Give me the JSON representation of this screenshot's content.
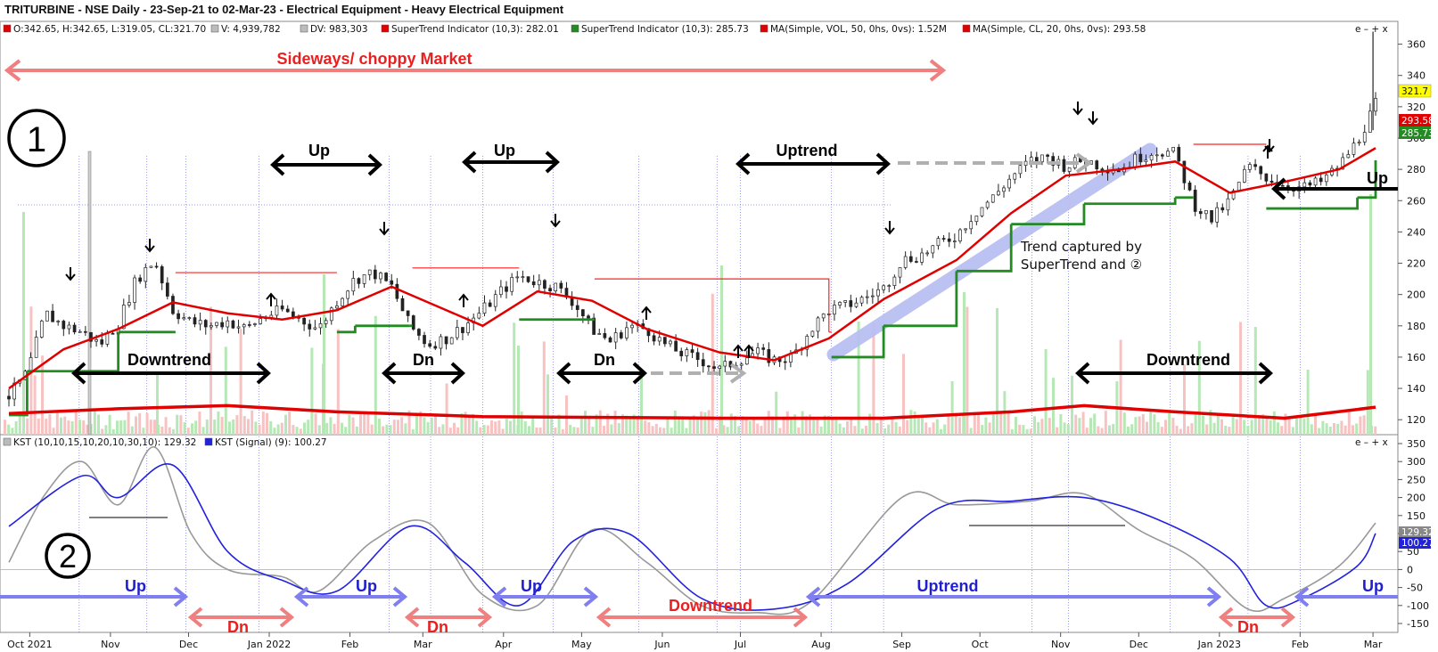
{
  "header": {
    "title": "TRITURBINE - NSE Daily - 23-Sep-21 to 02-Mar-23 - Electrical Equipment - Heavy Electrical Equipment",
    "window_controls": "e – + x",
    "subpanel_controls": "e – + x"
  },
  "colors": {
    "price_up": "#1a1a1a",
    "supertrend_green": "#228B22",
    "supertrend_red": "#ff2020",
    "ma20": "#e00000",
    "volume_ma": "#e00000",
    "volume_up": "#b6e8b6",
    "volume_down": "#f7c2c2",
    "kst": "#999999",
    "kst_signal": "#2222dd",
    "grid_vertical": "#5a5ae6",
    "sideways_arrow": "#f07f7f",
    "up_arrow_blue": "#7f7ff0",
    "down_arrow_red": "#f07f7f",
    "dashed_arrow": "#b0b0b0",
    "trend_band": "#b9bff2",
    "last_price_tag": "#ffff00",
    "ma_tag": "#e00000",
    "st_tag": "#228B22",
    "kst_tag": "#888888",
    "signal_tag": "#2222dd"
  },
  "legend_top": [
    {
      "icon": "none",
      "text": "O:342.65, H:342.65, L:319.05, CL:321.70"
    },
    {
      "icon": "square-gray",
      "text": "V: 4,939,782"
    },
    {
      "icon": "square-gray",
      "text": "DV: 983,303"
    },
    {
      "icon": "square-red",
      "text": "SuperTrend Indicator (10,3): 282.01"
    },
    {
      "icon": "square-green",
      "text": "SuperTrend Indicator (10,3): 285.73"
    },
    {
      "icon": "square-red",
      "text": "MA(Simple, VOL, 50, 0hs, 0vs): 1.52M"
    },
    {
      "icon": "square-red",
      "text": "MA(Simple, CL, 20, 0hs, 0vs): 293.58"
    }
  ],
  "legend_bottom": [
    {
      "icon": "square-gray",
      "text": "KST (10,10,15,10,20,10,30,10): 129.32"
    },
    {
      "icon": "square-blue",
      "text": "KST (Signal) (9): 100.27"
    }
  ],
  "price_axis_ticks": [
    "360",
    "340",
    "320",
    "300",
    "280",
    "260",
    "240",
    "220",
    "200",
    "180",
    "160",
    "140",
    "120"
  ],
  "kst_axis_ticks": [
    "350",
    "300",
    "250",
    "200",
    "150",
    "100",
    "50",
    "0",
    "-50",
    "-100",
    "-150"
  ],
  "x_axis_labels": [
    "Oct 2021",
    "Nov",
    "Dec",
    "Jan 2022",
    "Feb",
    "Mar",
    "Apr",
    "May",
    "Jun",
    "Jul",
    "Aug",
    "Sep",
    "Oct",
    "Nov",
    "Dec",
    "Jan 2023",
    "Feb",
    "Mar"
  ],
  "price_tags": {
    "last": "321.7",
    "ma": "293.58",
    "st": "285.73"
  },
  "kst_tags": {
    "kst": "129.32",
    "signal": "100.27"
  },
  "annotations": {
    "circle_1": "1",
    "circle_2": "2",
    "sideways": "Sideways/ choppy Market",
    "up1": "Up",
    "up2": "Up",
    "uptrend": "Uptrend",
    "up_right": "Up",
    "downtrend1": "Downtrend",
    "dn1": "Dn",
    "dn2": "Dn",
    "downtrend2": "Downtrend",
    "trend_line1": "Trend captured by",
    "trend_line2": "SuperTrend and ②",
    "k_up1": "Up",
    "k_up2": "Up",
    "k_up3": "Up",
    "k_uptrend": "Uptrend",
    "k_up4": "Up",
    "k_dn1": "Dn",
    "k_dn2": "Dn",
    "k_downtrend": "Downtrend",
    "k_dn3": "Dn"
  },
  "chart_data": {
    "type": "candlestick",
    "title": "TRITURBINE - NSE Daily - 23-Sep-21 to 02-Mar-23",
    "price_ylim": [
      115,
      370
    ],
    "kst_ylim": [
      -150,
      350
    ],
    "x_range": [
      "2021-09-23",
      "2023-03-02"
    ],
    "close": [
      [
        "2021-09-23",
        135
      ],
      [
        "2021-09-30",
        150
      ],
      [
        "2021-10-07",
        188
      ],
      [
        "2021-10-14",
        180
      ],
      [
        "2021-10-21",
        176
      ],
      [
        "2021-10-28",
        168
      ],
      [
        "2021-11-04",
        182
      ],
      [
        "2021-11-11",
        210
      ],
      [
        "2021-11-18",
        222
      ],
      [
        "2021-11-25",
        190
      ],
      [
        "2021-12-02",
        182
      ],
      [
        "2021-12-09",
        180
      ],
      [
        "2021-12-16",
        183
      ],
      [
        "2021-12-23",
        178
      ],
      [
        "2021-12-30",
        186
      ],
      [
        "2022-01-06",
        190
      ],
      [
        "2022-01-13",
        184
      ],
      [
        "2022-01-20",
        178
      ],
      [
        "2022-01-27",
        196
      ],
      [
        "2022-02-03",
        210
      ],
      [
        "2022-02-10",
        214
      ],
      [
        "2022-02-17",
        205
      ],
      [
        "2022-02-24",
        180
      ],
      [
        "2022-03-03",
        168
      ],
      [
        "2022-03-10",
        172
      ],
      [
        "2022-03-17",
        180
      ],
      [
        "2022-03-24",
        190
      ],
      [
        "2022-03-31",
        202
      ],
      [
        "2022-04-07",
        212
      ],
      [
        "2022-04-14",
        208
      ],
      [
        "2022-04-21",
        205
      ],
      [
        "2022-04-28",
        195
      ],
      [
        "2022-05-05",
        178
      ],
      [
        "2022-05-12",
        170
      ],
      [
        "2022-05-19",
        180
      ],
      [
        "2022-05-26",
        178
      ],
      [
        "2022-06-02",
        168
      ],
      [
        "2022-06-09",
        162
      ],
      [
        "2022-06-16",
        158
      ],
      [
        "2022-06-23",
        152
      ],
      [
        "2022-06-30",
        158
      ],
      [
        "2022-07-07",
        163
      ],
      [
        "2022-07-14",
        158
      ],
      [
        "2022-07-21",
        160
      ],
      [
        "2022-07-28",
        178
      ],
      [
        "2022-08-04",
        190
      ],
      [
        "2022-08-11",
        193
      ],
      [
        "2022-08-18",
        198
      ],
      [
        "2022-08-25",
        204
      ],
      [
        "2022-09-01",
        222
      ],
      [
        "2022-09-08",
        225
      ],
      [
        "2022-09-15",
        232
      ],
      [
        "2022-09-22",
        238
      ],
      [
        "2022-09-29",
        252
      ],
      [
        "2022-10-06",
        262
      ],
      [
        "2022-10-13",
        275
      ],
      [
        "2022-10-20",
        285
      ],
      [
        "2022-10-27",
        288
      ],
      [
        "2022-11-03",
        282
      ],
      [
        "2022-11-10",
        286
      ],
      [
        "2022-11-17",
        282
      ],
      [
        "2022-11-24",
        280
      ],
      [
        "2022-12-01",
        288
      ],
      [
        "2022-12-08",
        292
      ],
      [
        "2022-12-15",
        290
      ],
      [
        "2022-12-22",
        258
      ],
      [
        "2022-12-29",
        248
      ],
      [
        "2023-01-05",
        260
      ],
      [
        "2023-01-12",
        282
      ],
      [
        "2023-01-19",
        275
      ],
      [
        "2023-01-26",
        270
      ],
      [
        "2023-02-02",
        268
      ],
      [
        "2023-02-09",
        272
      ],
      [
        "2023-02-16",
        282
      ],
      [
        "2023-02-23",
        298
      ],
      [
        "2023-03-02",
        321.7
      ]
    ],
    "ma20_close": [
      [
        "2021-09-23",
        140
      ],
      [
        "2021-10-14",
        165
      ],
      [
        "2021-11-04",
        178
      ],
      [
        "2021-11-25",
        195
      ],
      [
        "2021-12-16",
        188
      ],
      [
        "2022-01-06",
        184
      ],
      [
        "2022-01-27",
        190
      ],
      [
        "2022-02-17",
        205
      ],
      [
        "2022-03-10",
        190
      ],
      [
        "2022-03-24",
        180
      ],
      [
        "2022-04-14",
        202
      ],
      [
        "2022-05-05",
        196
      ],
      [
        "2022-05-26",
        178
      ],
      [
        "2022-06-23",
        163
      ],
      [
        "2022-07-14",
        158
      ],
      [
        "2022-08-04",
        172
      ],
      [
        "2022-08-25",
        197
      ],
      [
        "2022-09-22",
        222
      ],
      [
        "2022-10-13",
        252
      ],
      [
        "2022-11-03",
        276
      ],
      [
        "2022-11-24",
        280
      ],
      [
        "2022-12-15",
        285
      ],
      [
        "2023-01-05",
        265
      ],
      [
        "2023-01-26",
        272
      ],
      [
        "2023-02-16",
        280
      ],
      [
        "2023-03-02",
        293.58
      ]
    ],
    "supertrend": [
      [
        "2021-09-23",
        123,
        "green"
      ],
      [
        "2021-09-30",
        151,
        "green"
      ],
      [
        "2021-10-21",
        151,
        "green"
      ],
      [
        "2021-11-04",
        176,
        "green"
      ],
      [
        "2021-11-25",
        176,
        "green"
      ],
      [
        "2021-11-26",
        214,
        "red"
      ],
      [
        "2022-01-06",
        214,
        "red"
      ],
      [
        "2022-01-27",
        176,
        "green"
      ],
      [
        "2022-02-03",
        180,
        "green"
      ],
      [
        "2022-02-24",
        180,
        "green"
      ],
      [
        "2022-02-25",
        217,
        "red"
      ],
      [
        "2022-03-31",
        217,
        "red"
      ],
      [
        "2022-04-07",
        184,
        "green"
      ],
      [
        "2022-05-05",
        184,
        "green"
      ],
      [
        "2022-05-06",
        210,
        "red"
      ],
      [
        "2022-08-04",
        176,
        "red"
      ],
      [
        "2022-08-05",
        160,
        "green"
      ],
      [
        "2022-08-25",
        180,
        "green"
      ],
      [
        "2022-09-22",
        215,
        "green"
      ],
      [
        "2022-10-13",
        245,
        "green"
      ],
      [
        "2022-11-10",
        258,
        "green"
      ],
      [
        "2022-12-15",
        262,
        "green"
      ],
      [
        "2022-12-22",
        296,
        "red"
      ],
      [
        "2023-01-12",
        296,
        "red"
      ],
      [
        "2023-01-19",
        255,
        "green"
      ],
      [
        "2023-02-23",
        262,
        "green"
      ],
      [
        "2023-03-02",
        285.73,
        "green"
      ]
    ],
    "volume_ma": [
      [
        "2021-09-23",
        124
      ],
      [
        "2021-11-04",
        127
      ],
      [
        "2021-12-16",
        129
      ],
      [
        "2022-01-27",
        125
      ],
      [
        "2022-03-24",
        122
      ],
      [
        "2022-06-23",
        121
      ],
      [
        "2022-08-25",
        121
      ],
      [
        "2022-10-13",
        125
      ],
      [
        "2022-11-10",
        129
      ],
      [
        "2022-12-15",
        125
      ],
      [
        "2023-01-26",
        121
      ],
      [
        "2023-03-02",
        128
      ]
    ],
    "kst": [
      [
        "2021-09-23",
        20
      ],
      [
        "2021-10-07",
        210
      ],
      [
        "2021-10-21",
        300
      ],
      [
        "2021-11-04",
        180
      ],
      [
        "2021-11-18",
        340
      ],
      [
        "2021-12-02",
        100
      ],
      [
        "2021-12-16",
        0
      ],
      [
        "2022-01-06",
        -20
      ],
      [
        "2022-01-20",
        -60
      ],
      [
        "2022-02-10",
        80
      ],
      [
        "2022-03-03",
        130
      ],
      [
        "2022-03-24",
        -70
      ],
      [
        "2022-04-14",
        -100
      ],
      [
        "2022-05-05",
        110
      ],
      [
        "2022-05-26",
        20
      ],
      [
        "2022-06-16",
        -100
      ],
      [
        "2022-07-07",
        -120
      ],
      [
        "2022-07-28",
        -90
      ],
      [
        "2022-09-01",
        200
      ],
      [
        "2022-09-22",
        180
      ],
      [
        "2022-10-20",
        190
      ],
      [
        "2022-11-10",
        210
      ],
      [
        "2022-12-01",
        110
      ],
      [
        "2022-12-22",
        30
      ],
      [
        "2023-01-12",
        -110
      ],
      [
        "2023-01-26",
        -80
      ],
      [
        "2023-02-16",
        10
      ],
      [
        "2023-03-02",
        129.32
      ]
    ],
    "kst_signal": [
      [
        "2021-09-23",
        120
      ],
      [
        "2021-10-21",
        260
      ],
      [
        "2021-11-04",
        200
      ],
      [
        "2021-11-25",
        290
      ],
      [
        "2021-12-16",
        50
      ],
      [
        "2022-01-06",
        -30
      ],
      [
        "2022-01-27",
        -60
      ],
      [
        "2022-02-24",
        120
      ],
      [
        "2022-03-17",
        20
      ],
      [
        "2022-04-07",
        -100
      ],
      [
        "2022-04-28",
        80
      ],
      [
        "2022-05-19",
        100
      ],
      [
        "2022-06-16",
        -80
      ],
      [
        "2022-07-14",
        -110
      ],
      [
        "2022-08-11",
        -40
      ],
      [
        "2022-09-15",
        170
      ],
      [
        "2022-10-13",
        190
      ],
      [
        "2022-11-10",
        200
      ],
      [
        "2022-12-08",
        140
      ],
      [
        "2023-01-05",
        30
      ],
      [
        "2023-01-19",
        -100
      ],
      [
        "2023-02-02",
        -80
      ],
      [
        "2023-02-23",
        10
      ],
      [
        "2023-03-02",
        100.27
      ]
    ]
  }
}
